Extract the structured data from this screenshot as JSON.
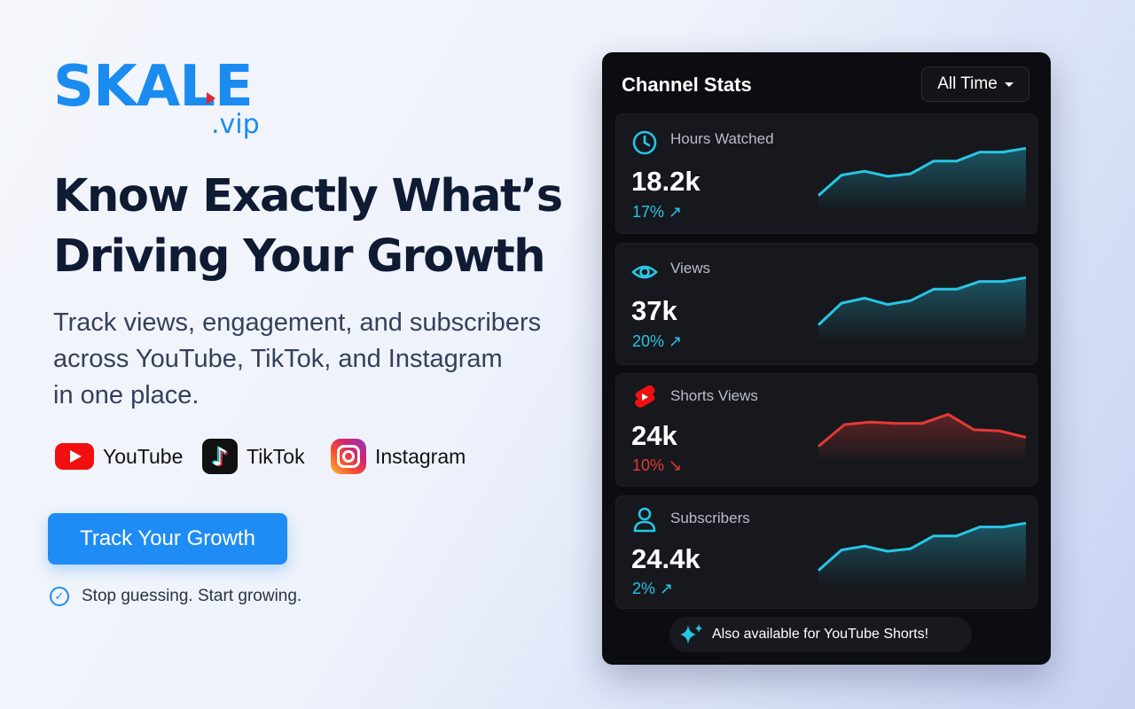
{
  "brand": {
    "name": "SKALE",
    "domain": ".vip",
    "color": "#1a8cf0"
  },
  "hero": {
    "headline_line1": "Know Exactly What’s",
    "headline_line2": "Driving Your Growth",
    "subtext_line1": "Track views, engagement, and subscribers",
    "subtext_line2": "across YouTube, TikTok, and Instagram",
    "subtext_line3": "in one place."
  },
  "platforms": [
    {
      "name": "YouTube",
      "icon": "youtube-icon"
    },
    {
      "name": "TikTok",
      "icon": "tiktok-icon"
    },
    {
      "name": "Instagram",
      "icon": "instagram-icon"
    }
  ],
  "cta": {
    "label": "Track Your Growth",
    "color": "#1f8cf5"
  },
  "tagline": {
    "text": "Stop guessing. Start growing.",
    "icon": "check-circle-icon"
  },
  "stats_card": {
    "title": "Channel Stats",
    "range": "All Time",
    "stats": [
      {
        "label": "Hours Watched",
        "value": "18.2k",
        "change": "17% ↗",
        "trend": "up",
        "icon": "clock-icon",
        "sparkline": [
          10,
          26,
          29,
          25,
          27,
          37,
          37,
          44,
          44,
          47
        ],
        "color": "#27c6e4"
      },
      {
        "label": "Views",
        "value": "37k",
        "change": "20% ↗",
        "trend": "up",
        "icon": "eye-icon",
        "sparkline": [
          10,
          27,
          31,
          26,
          29,
          38,
          38,
          44,
          44,
          47
        ],
        "color": "#27c6e4"
      },
      {
        "label": "Shorts Views",
        "value": "24k",
        "change": "10% ↘",
        "trend": "down",
        "icon": "youtube-shorts-icon",
        "sparkline": [
          10,
          27,
          29,
          28,
          28,
          35,
          23,
          22,
          17
        ],
        "color": "#e53935"
      },
      {
        "label": "Subscribers",
        "value": "24.4k",
        "change": "2% ↗",
        "trend": "up",
        "icon": "user-icon",
        "sparkline": [
          10,
          26,
          29,
          25,
          27,
          37,
          37,
          44,
          44,
          47
        ],
        "color": "#27c6e4"
      }
    ],
    "footer": {
      "text": "Also available for YouTube Shorts!",
      "icon": "sparkle-icon"
    }
  }
}
